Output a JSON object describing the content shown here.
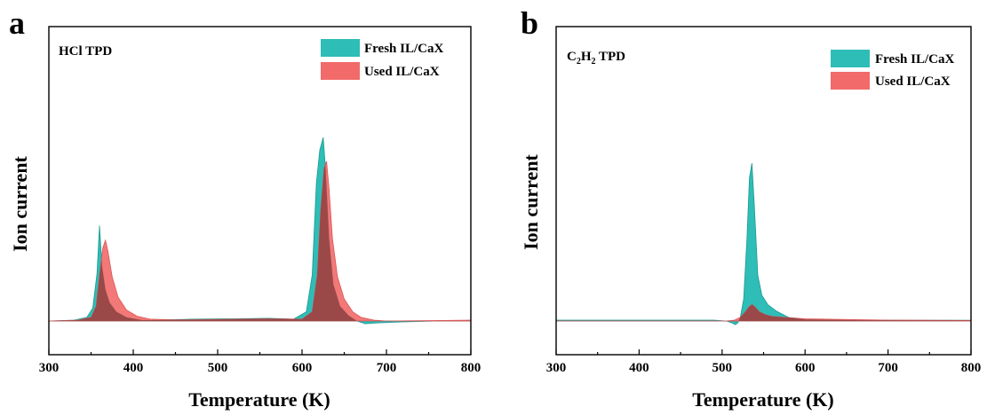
{
  "colors": {
    "fresh": "#2ebdb7",
    "used": "#f26a6a",
    "overlap": "#9a4848"
  },
  "chart_data": [
    {
      "type": "area",
      "panel": "a",
      "title": "HCl TPD",
      "xlabel": "Temperature (K)",
      "ylabel": "Ion current",
      "xlim": [
        300,
        800
      ],
      "ylim": [
        -0.02,
        1.1
      ],
      "xticks": [
        300,
        400,
        500,
        600,
        700,
        800
      ],
      "xtick_labels": [
        "300",
        "400",
        "500",
        "600",
        "700",
        "800"
      ],
      "legend": {
        "position": "top-right",
        "entries": [
          "Fresh IL/CaX",
          "Used IL/CaX"
        ]
      },
      "series": [
        {
          "name": "Fresh IL/CaX",
          "x": [
            300,
            330,
            345,
            352,
            357,
            360,
            363,
            367,
            372,
            380,
            392,
            410,
            430,
            470,
            520,
            560,
            590,
            605,
            612,
            617,
            621,
            625,
            628,
            632,
            637,
            645,
            655,
            665,
            675,
            690,
            720,
            760,
            800
          ],
          "y": [
            0,
            0.005,
            0.02,
            0.07,
            0.26,
            0.52,
            0.3,
            0.17,
            0.1,
            0.05,
            0.02,
            0.005,
            0.005,
            0.01,
            0.012,
            0.015,
            0.01,
            0.05,
            0.25,
            0.75,
            0.93,
            1.0,
            0.82,
            0.45,
            0.2,
            0.08,
            0.03,
            0.0,
            -0.015,
            -0.01,
            -0.005,
            0.0,
            0.0
          ]
        },
        {
          "name": "Used IL/CaX",
          "x": [
            300,
            335,
            350,
            356,
            360,
            364,
            367,
            370,
            375,
            382,
            392,
            405,
            420,
            450,
            500,
            560,
            600,
            612,
            618,
            622,
            626,
            629,
            632,
            636,
            642,
            650,
            660,
            670,
            685,
            700,
            740,
            800
          ],
          "y": [
            0,
            0.005,
            0.02,
            0.08,
            0.25,
            0.4,
            0.44,
            0.38,
            0.24,
            0.13,
            0.06,
            0.025,
            0.01,
            0.006,
            0.008,
            0.012,
            0.01,
            0.05,
            0.25,
            0.6,
            0.83,
            0.87,
            0.72,
            0.45,
            0.24,
            0.12,
            0.05,
            0.02,
            0.005,
            0.0,
            0.002,
            0.005
          ]
        }
      ]
    },
    {
      "type": "area",
      "panel": "b",
      "title_main": "C",
      "title_sub1": "2",
      "title_mid": "H",
      "title_sub2": "2",
      "title_tail": " TPD",
      "xlabel": "Temperature (K)",
      "ylabel": "Ion current",
      "xlim": [
        300,
        800
      ],
      "ylim": [
        -0.02,
        1.1
      ],
      "xticks": [
        300,
        400,
        500,
        600,
        700,
        800
      ],
      "xtick_labels": [
        "300",
        "400",
        "500",
        "600",
        "700",
        "800"
      ],
      "legend": {
        "position": "top-right",
        "entries": [
          "Fresh IL/CaX",
          "Used IL/CaX"
        ]
      },
      "series": [
        {
          "name": "Fresh IL/CaX",
          "x": [
            300,
            490,
            505,
            512,
            516,
            519,
            522,
            526,
            530,
            533,
            536,
            539,
            543,
            548,
            555,
            565,
            580,
            600,
            650,
            720,
            800
          ],
          "y": [
            0.005,
            0.005,
            0.0,
            -0.01,
            -0.02,
            -0.01,
            0.02,
            0.12,
            0.45,
            0.78,
            0.86,
            0.62,
            0.25,
            0.14,
            0.09,
            0.055,
            0.02,
            0.008,
            0.005,
            0.004,
            0.004
          ]
        },
        {
          "name": "Used IL/CaX",
          "x": [
            300,
            505,
            515,
            522,
            528,
            532,
            536,
            540,
            545,
            552,
            560,
            575,
            600,
            650,
            700,
            800
          ],
          "y": [
            0,
            0,
            0.005,
            0.02,
            0.05,
            0.075,
            0.09,
            0.075,
            0.05,
            0.035,
            0.025,
            0.02,
            0.012,
            0.008,
            0.005,
            0.003
          ]
        }
      ]
    }
  ]
}
